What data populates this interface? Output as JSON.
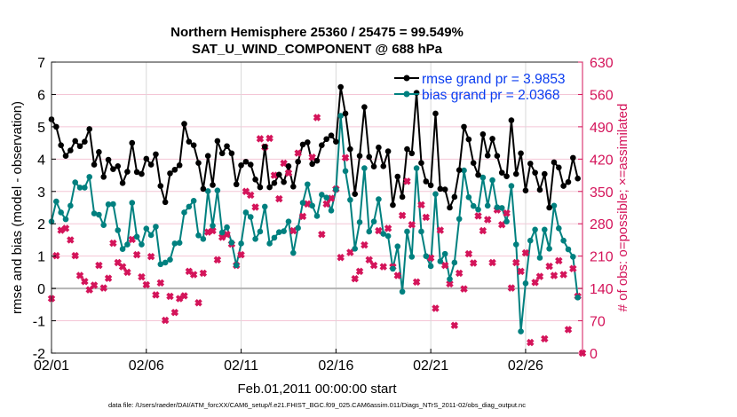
{
  "chart_data": {
    "type": "line",
    "title": "Northern Hemisphere 25360 / 25475 = 99.549%",
    "subtitle": "SAT_U_WIND_COMPONENT @ 688 hPa",
    "xlabel": "Feb.01,2011 00:00:00 start",
    "ylabel": "rmse and bias (model - observation)",
    "y2label": "# of obs: o=possible; ×=assimilated",
    "footer": "data file: /Users/raeder/DAI/ATM_forcXX/CAM6_setup/f.e21.FHIST_BGC.f09_025.CAM6assim.011/Diags_NTrS_2011-02/obs_diag_output.nc",
    "xticks": [
      "02/01",
      "02/06",
      "02/11",
      "02/16",
      "02/21",
      "02/26"
    ],
    "xlim": [
      "02/01 00",
      "03/01 00"
    ],
    "ylim": [
      -2,
      7
    ],
    "yticks": [
      "-2",
      "-1",
      "0",
      "1",
      "2",
      "3",
      "4",
      "5",
      "6",
      "7"
    ],
    "y2lim": [
      0,
      630
    ],
    "y2ticks": [
      "0",
      "70",
      "140",
      "210",
      "280",
      "350",
      "420",
      "490",
      "560",
      "630"
    ],
    "grid": true,
    "legend_position": "top-right",
    "colors": {
      "rmse": "#000000",
      "bias": "#00807f",
      "obs": "#d4145a",
      "legend_text": "#0a3cf0",
      "zero_line": "#b4b4b4"
    },
    "x": [
      "02/01 00",
      "02/01 06",
      "02/01 12",
      "02/01 18",
      "02/02 00",
      "02/02 06",
      "02/02 12",
      "02/02 18",
      "02/03 00",
      "02/03 06",
      "02/03 12",
      "02/03 18",
      "02/04 00",
      "02/04 06",
      "02/04 12",
      "02/04 18",
      "02/05 00",
      "02/05 06",
      "02/05 12",
      "02/05 18",
      "02/06 00",
      "02/06 06",
      "02/06 12",
      "02/06 18",
      "02/07 00",
      "02/07 06",
      "02/07 12",
      "02/07 18",
      "02/08 00",
      "02/08 06",
      "02/08 12",
      "02/08 18",
      "02/09 00",
      "02/09 06",
      "02/09 12",
      "02/09 18",
      "02/10 00",
      "02/10 06",
      "02/10 12",
      "02/10 18",
      "02/11 00",
      "02/11 06",
      "02/11 12",
      "02/11 18",
      "02/12 00",
      "02/12 06",
      "02/12 12",
      "02/12 18",
      "02/13 00",
      "02/13 06",
      "02/13 12",
      "02/13 18",
      "02/14 00",
      "02/14 06",
      "02/14 12",
      "02/14 18",
      "02/15 00",
      "02/15 06",
      "02/15 12",
      "02/15 18",
      "02/16 00",
      "02/16 06",
      "02/16 12",
      "02/16 18",
      "02/17 00",
      "02/17 06",
      "02/17 12",
      "02/17 18",
      "02/18 00",
      "02/18 06",
      "02/18 12",
      "02/18 18",
      "02/19 00",
      "02/19 06",
      "02/19 12",
      "02/19 18",
      "02/20 00",
      "02/20 06",
      "02/20 12",
      "02/20 18",
      "02/21 00",
      "02/21 06",
      "02/21 12",
      "02/21 18",
      "02/22 00",
      "02/22 06",
      "02/22 12",
      "02/22 18",
      "02/23 00",
      "02/23 06",
      "02/23 12",
      "02/23 18",
      "02/24 00",
      "02/24 06",
      "02/24 12",
      "02/24 18",
      "02/25 00",
      "02/25 06",
      "02/25 12",
      "02/25 18",
      "02/26 00",
      "02/26 06",
      "02/26 12",
      "02/26 18",
      "02/27 00",
      "02/27 06",
      "02/27 12",
      "02/27 18",
      "02/28 00",
      "02/28 06",
      "02/28 12",
      "02/28 18",
      "03/01 00"
    ],
    "series": [
      {
        "name": "rmse grand pr = 3.9853",
        "axis": "left",
        "values": [
          5.23,
          5.0,
          4.43,
          4.1,
          4.27,
          4.56,
          4.4,
          4.54,
          4.93,
          3.83,
          4.22,
          3.45,
          3.98,
          3.69,
          3.78,
          3.26,
          3.61,
          4.5,
          3.6,
          3.54,
          4.01,
          3.83,
          4.15,
          3.17,
          2.67,
          3.56,
          3.67,
          3.81,
          5.09,
          4.54,
          4.43,
          3.88,
          3.08,
          4.1,
          3.2,
          4.56,
          4.18,
          4.4,
          4.18,
          3.22,
          3.81,
          3.92,
          3.83,
          3.37,
          3.13,
          4.38,
          3.13,
          3.26,
          3.52,
          3.29,
          3.78,
          3.15,
          3.92,
          4.45,
          4.52,
          3.85,
          3.95,
          4.43,
          4.62,
          4.73,
          4.54,
          6.23,
          5.41,
          4.31,
          2.92,
          4.1,
          5.61,
          4.07,
          3.77,
          4.36,
          3.78,
          4.24,
          2.58,
          3.46,
          2.83,
          4.31,
          4.18,
          6.05,
          3.88,
          3.31,
          3.19,
          5.41,
          3.08,
          3.06,
          2.5,
          2.83,
          3.66,
          5.0,
          4.61,
          3.88,
          3.51,
          4.77,
          4.11,
          4.63,
          4.1,
          3.58,
          3.47,
          5.2,
          3.54,
          4.18,
          3.03,
          3.86,
          3.58,
          3.05,
          3.54,
          2.5,
          3.9,
          3.74,
          3.17,
          3.29,
          4.04,
          3.4,
          null
        ]
      },
      {
        "name": "bias grand pr = 2.0368",
        "axis": "left",
        "values": [
          2.07,
          2.69,
          2.35,
          2.14,
          2.56,
          3.28,
          3.12,
          3.12,
          3.45,
          2.32,
          2.28,
          1.96,
          2.6,
          2.61,
          1.8,
          1.22,
          1.36,
          2.65,
          1.6,
          1.36,
          1.85,
          1.65,
          1.91,
          0.75,
          0.8,
          0.89,
          1.39,
          1.41,
          2.35,
          2.53,
          2.71,
          1.64,
          1.53,
          3.01,
          1.94,
          3.03,
          1.73,
          1.89,
          1.42,
          0.72,
          1.39,
          2.35,
          2.21,
          1.53,
          1.76,
          2.53,
          1.39,
          1.57,
          1.74,
          1.77,
          2.07,
          1.1,
          1.87,
          2.65,
          3.22,
          2.56,
          2.24,
          2.9,
          2.81,
          2.41,
          3.06,
          5.34,
          3.63,
          2.74,
          1.23,
          2.05,
          3.72,
          1.76,
          2.07,
          2.76,
          1.69,
          1.62,
          0.61,
          1.3,
          -0.1,
          1.76,
          0.98,
          3.72,
          1.76,
          1.0,
          0.69,
          2.92,
          0.84,
          1.07,
          0.29,
          0.8,
          2.15,
          3.65,
          2.82,
          2.55,
          2.44,
          3.43,
          2.56,
          3.35,
          2.51,
          2.49,
          2.07,
          3.17,
          1.36,
          -1.33,
          0.16,
          1.48,
          1.82,
          0.95,
          1.82,
          1.23,
          2.56,
          1.86,
          1.48,
          1.21,
          0.98,
          -0.28,
          null
        ]
      },
      {
        "axis": "right",
        "values": [
          118,
          211,
          266,
          270,
          245,
          211,
          168,
          155,
          137,
          147,
          190,
          141,
          162,
          238,
          196,
          187,
          175,
          246,
          213,
          165,
          148,
          209,
          126,
          152,
          71,
          123,
          88,
          118,
          124,
          177,
          170,
          109,
          173,
          262,
          265,
          202,
          251,
          257,
          236,
          190,
          213,
          350,
          342,
          316,
          464,
          446,
          465,
          385,
          334,
          411,
          390,
          265,
          433,
          296,
          323,
          424,
          510,
          257,
          323,
          335,
          355,
          207,
          423,
          218,
          161,
          177,
          234,
          202,
          190,
          265,
          187,
          270,
          187,
          168,
          298,
          372,
          278,
          154,
          321,
          294,
          206,
          97,
          266,
          190,
          150,
          60,
          173,
          139,
          215,
          195,
          297,
          265,
          289,
          196,
          310,
          278,
          303,
          141,
          196,
          177,
          217,
          23,
          153,
          166,
          31,
          188,
          168,
          200,
          170,
          51,
          183,
          123,
          0
        ]
      }
    ]
  }
}
